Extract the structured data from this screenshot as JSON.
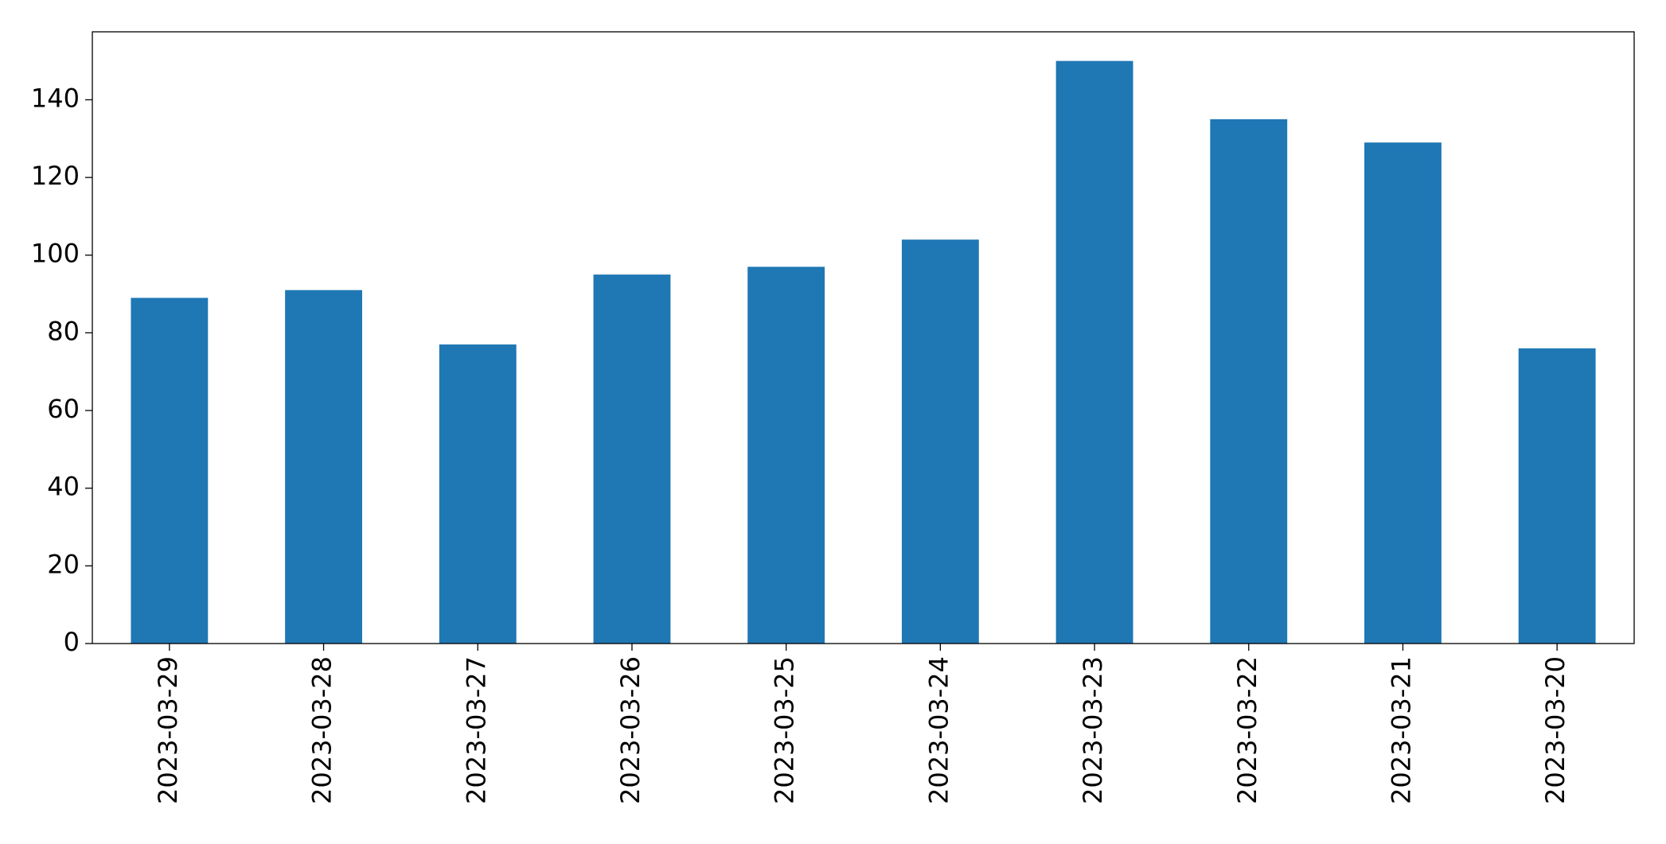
{
  "chart_data": {
    "type": "bar",
    "categories": [
      "2023-03-29",
      "2023-03-28",
      "2023-03-27",
      "2023-03-26",
      "2023-03-25",
      "2023-03-24",
      "2023-03-23",
      "2023-03-22",
      "2023-03-21",
      "2023-03-20"
    ],
    "values": [
      89,
      91,
      77,
      95,
      97,
      104,
      150,
      135,
      129,
      76
    ],
    "color": "#1f77b4",
    "ylim": [
      0,
      157.5
    ],
    "yticks": [
      0,
      20,
      40,
      60,
      80,
      100,
      120,
      140
    ],
    "grid": false
  }
}
